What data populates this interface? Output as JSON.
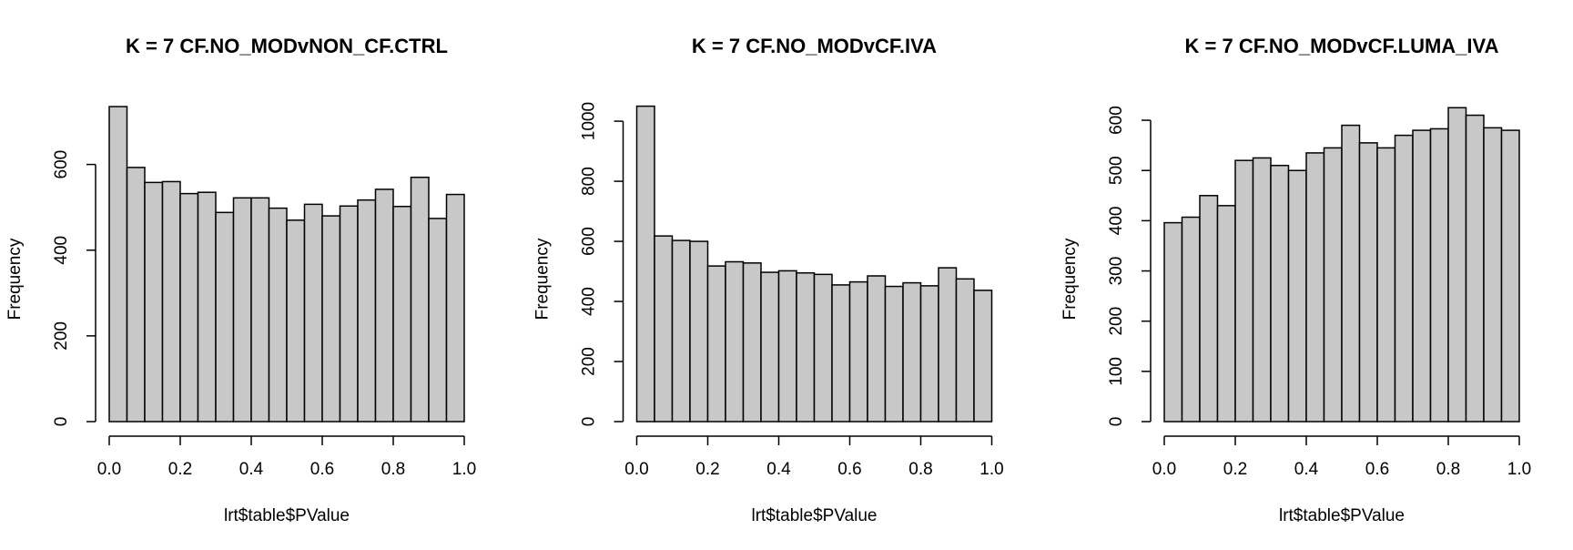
{
  "chart_data": [
    {
      "type": "histogram",
      "title": "K = 7 CF.NO_MODvNON_CF.CTRL",
      "x_label": "lrt$table$PValue",
      "y_label": "Frequency",
      "color": "#c8c8c8",
      "bins": [
        0,
        0.05,
        0.1,
        0.15,
        0.2,
        0.25,
        0.3,
        0.35,
        0.4,
        0.45,
        0.5,
        0.55,
        0.6,
        0.65,
        0.7,
        0.75,
        0.8,
        0.85,
        0.9,
        0.95,
        1
      ],
      "values": [
        735,
        593,
        558,
        560,
        532,
        535,
        488,
        522,
        522,
        498,
        470,
        507,
        480,
        503,
        517,
        542,
        502,
        570,
        474,
        530
      ],
      "xlim": [
        0,
        1
      ],
      "xticks": [
        {
          "value": 0,
          "label": "0.0"
        },
        0.2,
        0.4,
        0.6,
        0.8,
        {
          "value": 1,
          "label": "1.0"
        }
      ],
      "ylim": [
        0,
        750
      ],
      "yticks": [
        0,
        200,
        400,
        600
      ]
    },
    {
      "type": "histogram",
      "title": "K = 7 CF.NO_MODvCF.IVA",
      "x_label": "lrt$table$PValue",
      "y_label": "Frequency",
      "color": "#c8c8c8",
      "bins": [
        0,
        0.05,
        0.1,
        0.15,
        0.2,
        0.25,
        0.3,
        0.35,
        0.4,
        0.45,
        0.5,
        0.55,
        0.6,
        0.65,
        0.7,
        0.75,
        0.8,
        0.85,
        0.9,
        0.95,
        1
      ],
      "values": [
        1050,
        618,
        603,
        600,
        518,
        532,
        528,
        497,
        502,
        495,
        490,
        455,
        465,
        485,
        450,
        462,
        452,
        512,
        475,
        437
      ],
      "xlim": [
        0,
        1
      ],
      "xticks": [
        {
          "value": 0,
          "label": "0.0"
        },
        0.2,
        0.4,
        0.6,
        0.8,
        {
          "value": 1,
          "label": "1.0"
        }
      ],
      "ylim": [
        0,
        1070
      ],
      "yticks": [
        0,
        200,
        400,
        600,
        800,
        1000
      ]
    },
    {
      "type": "histogram",
      "title": "K = 7 CF.NO_MODvCF.LUMA_IVA",
      "x_label": "lrt$table$PValue",
      "y_label": "Frequency",
      "color": "#c8c8c8",
      "bins": [
        0,
        0.05,
        0.1,
        0.15,
        0.2,
        0.25,
        0.3,
        0.35,
        0.4,
        0.45,
        0.5,
        0.55,
        0.6,
        0.65,
        0.7,
        0.75,
        0.8,
        0.85,
        0.9,
        0.95,
        1
      ],
      "values": [
        396,
        407,
        450,
        430,
        520,
        525,
        510,
        500,
        535,
        545,
        590,
        555,
        545,
        570,
        580,
        583,
        625,
        610,
        585,
        580
      ],
      "xlim": [
        0,
        1
      ],
      "xticks": [
        {
          "value": 0,
          "label": "0.0"
        },
        0.2,
        0.4,
        0.6,
        0.8,
        {
          "value": 1,
          "label": "1.0"
        }
      ],
      "ylim": [
        0,
        640
      ],
      "yticks": [
        0,
        100,
        200,
        300,
        400,
        500,
        600
      ]
    }
  ]
}
